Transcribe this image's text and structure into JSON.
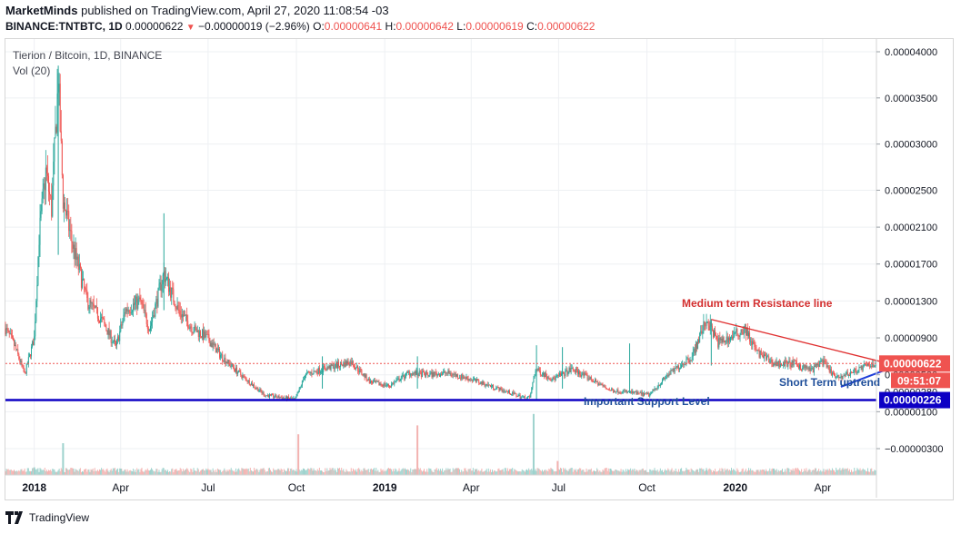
{
  "header": {
    "author": "MarketMinds",
    "published_text": "published on TradingView.com, April 27, 2020 11:08:54 -03",
    "symbol": "BINANCE:TNTBTC, 1D",
    "last": "0.00000622",
    "change": "−0.00000019 (−2.96%)",
    "o_label": "O:",
    "o_value": "0.00000641",
    "h_label": "H:",
    "h_value": "0.00000642",
    "l_label": "L:",
    "l_value": "0.00000619",
    "c_label": "C:",
    "c_value": "0.00000622"
  },
  "legend": {
    "title": "Tierion / Bitcoin, 1D, BINANCE",
    "vol": "Vol (20)"
  },
  "footer": {
    "brand": "TradingView"
  },
  "colors": {
    "up": "#26a69a",
    "down": "#ef5350",
    "support": "#0d00c4",
    "resistance": "#e03030",
    "uptrend": "#1f3fd8",
    "price_tag": "#ef5350"
  },
  "chart_data": {
    "type": "candlestick",
    "symbol": "TNTBTC",
    "y_ticks": [
      "0.00004000",
      "0.00003500",
      "0.00003000",
      "0.00002500",
      "0.00002100",
      "0.00001700",
      "0.00001300",
      "0.00000900",
      "0.00000500",
      "0.00000100",
      "−0.00000300"
    ],
    "y_tick_values": [
      4000,
      3500,
      3000,
      2500,
      2100,
      1700,
      1300,
      900,
      500,
      100,
      -300
    ],
    "x_ticks": [
      "2018",
      "Apr",
      "Jul",
      "Oct",
      "2019",
      "Apr",
      "Jul",
      "Oct",
      "2020",
      "Apr"
    ],
    "x_tick_days": [
      0,
      90,
      181,
      273,
      365,
      455,
      546,
      638,
      730,
      821
    ],
    "x_range_days": [
      -30,
      877
    ],
    "price_scale_units": "1e-8 BTC",
    "price_path": [
      [
        -30,
        1000
      ],
      [
        -20,
        800
      ],
      [
        -10,
        500
      ],
      [
        0,
        900
      ],
      [
        5,
        2000
      ],
      [
        12,
        2700
      ],
      [
        18,
        2300
      ],
      [
        25,
        3700
      ],
      [
        30,
        2400
      ],
      [
        40,
        1900
      ],
      [
        55,
        1300
      ],
      [
        70,
        1100
      ],
      [
        85,
        800
      ],
      [
        95,
        1200
      ],
      [
        110,
        1300
      ],
      [
        120,
        1000
      ],
      [
        135,
        1600
      ],
      [
        150,
        1200
      ],
      [
        165,
        1000
      ],
      [
        180,
        900
      ],
      [
        195,
        700
      ],
      [
        215,
        500
      ],
      [
        240,
        280
      ],
      [
        272,
        230
      ],
      [
        282,
        500
      ],
      [
        300,
        560
      ],
      [
        330,
        640
      ],
      [
        350,
        420
      ],
      [
        370,
        380
      ],
      [
        390,
        520
      ],
      [
        410,
        500
      ],
      [
        430,
        520
      ],
      [
        455,
        450
      ],
      [
        480,
        360
      ],
      [
        510,
        250
      ],
      [
        516,
        250
      ],
      [
        522,
        560
      ],
      [
        540,
        450
      ],
      [
        560,
        560
      ],
      [
        580,
        450
      ],
      [
        600,
        330
      ],
      [
        620,
        310
      ],
      [
        640,
        280
      ],
      [
        660,
        500
      ],
      [
        685,
        700
      ],
      [
        700,
        1100
      ],
      [
        712,
        850
      ],
      [
        725,
        900
      ],
      [
        740,
        1000
      ],
      [
        752,
        750
      ],
      [
        770,
        620
      ],
      [
        790,
        620
      ],
      [
        810,
        550
      ],
      [
        820,
        650
      ],
      [
        835,
        460
      ],
      [
        850,
        520
      ],
      [
        865,
        590
      ],
      [
        877,
        622
      ]
    ],
    "volume_spikes": [
      [
        30,
        250
      ],
      [
        275,
        320
      ],
      [
        399,
        390
      ],
      [
        520,
        480
      ],
      [
        545,
        110
      ],
      [
        0,
        60
      ],
      [
        90,
        50
      ],
      [
        180,
        40
      ],
      [
        600,
        50
      ],
      [
        700,
        40
      ],
      [
        770,
        50
      ]
    ],
    "last_price": "0.00000622",
    "countdown": "09:51:07",
    "support_value": "0.00000226",
    "hidden_tag": "0.00000280",
    "annotations": {
      "resistance": "Medium term Resistance line",
      "uptrend": "Short Term uptrend",
      "support": "Important Support Level"
    },
    "resistance_line": [
      [
        705,
        1100
      ],
      [
        877,
        660
      ]
    ],
    "uptrend_line": [
      [
        840,
        370
      ],
      [
        877,
        670
      ]
    ],
    "support_level": 226
  }
}
